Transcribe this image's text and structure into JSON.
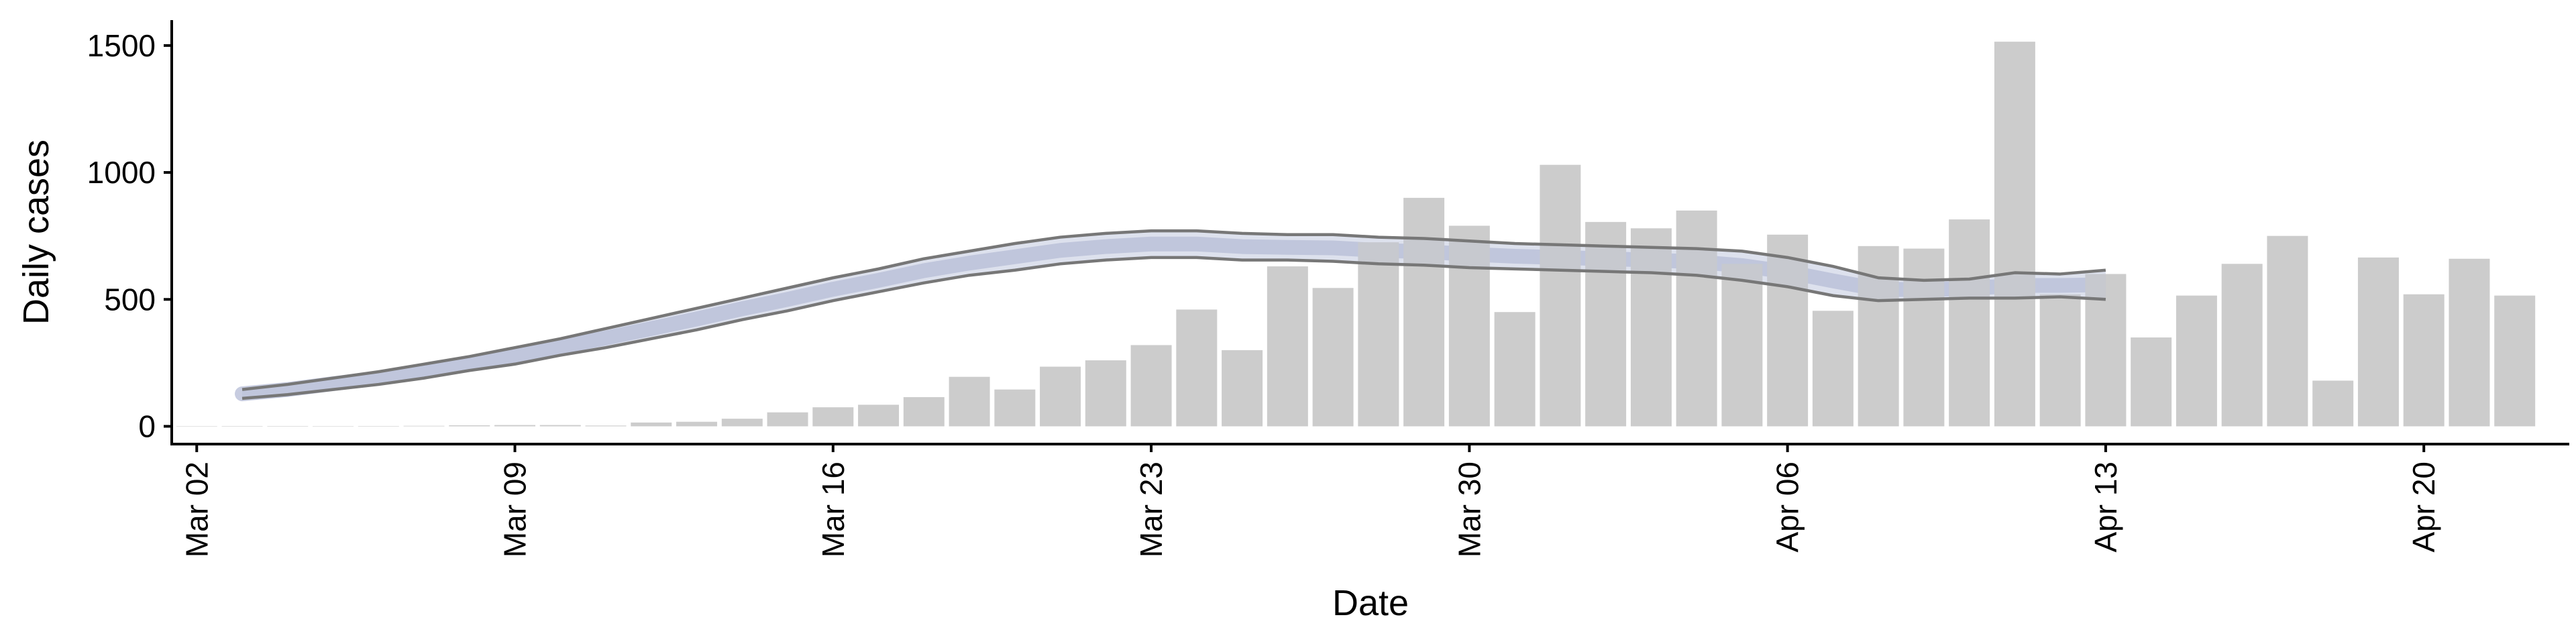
{
  "chart_data": {
    "type": "bar",
    "title": "",
    "xlabel": "Date",
    "ylabel": "Daily cases",
    "ylim": [
      -70,
      1600
    ],
    "yticks": [
      0,
      500,
      1000,
      1500
    ],
    "xlim": [
      -0.55,
      52.2
    ],
    "xticks": [
      {
        "pos": 0,
        "label": "Mar 02"
      },
      {
        "pos": 7,
        "label": "Mar 09"
      },
      {
        "pos": 14,
        "label": "Mar 16"
      },
      {
        "pos": 21,
        "label": "Mar 23"
      },
      {
        "pos": 28,
        "label": "Mar 30"
      },
      {
        "pos": 35,
        "label": "Apr 06"
      },
      {
        "pos": 42,
        "label": "Apr 13"
      },
      {
        "pos": 49,
        "label": "Apr 20"
      }
    ],
    "grid": false,
    "legend": "none",
    "colors": {
      "bars": "#cccccc",
      "band_lines": "#777777",
      "band_fill": "#b9bfd8",
      "band_fill_light": "#e6e9f3"
    },
    "series": [
      {
        "kind": "bar",
        "x": [
          0,
          1,
          2,
          3,
          4,
          5,
          6,
          7,
          8,
          9,
          10,
          11,
          12,
          13,
          14,
          15,
          16,
          17,
          18,
          19,
          20,
          21,
          22,
          23,
          24,
          25,
          26,
          27,
          28,
          29,
          30,
          31,
          32,
          33,
          34,
          35,
          36,
          37,
          38,
          39,
          40,
          41,
          42,
          43,
          44,
          45,
          46,
          47,
          48,
          49,
          50,
          51
        ],
        "values": [
          0,
          1,
          1,
          0,
          1,
          2,
          4,
          5,
          5,
          3,
          15,
          18,
          30,
          55,
          75,
          85,
          115,
          195,
          145,
          235,
          260,
          320,
          460,
          300,
          630,
          545,
          725,
          900,
          790,
          450,
          1030,
          805,
          780,
          850,
          640,
          755,
          455,
          710,
          700,
          815,
          1515,
          520,
          600,
          350,
          515,
          640,
          750,
          180,
          665,
          520,
          660,
          515
        ]
      },
      {
        "kind": "band",
        "x": [
          1,
          2,
          3,
          4,
          5,
          6,
          7,
          8,
          9,
          10,
          11,
          12,
          13,
          14,
          15,
          16,
          17,
          18,
          19,
          20,
          21,
          22,
          23,
          24,
          25,
          26,
          27,
          28,
          29,
          30,
          31,
          32,
          33,
          34,
          35,
          36,
          37,
          38,
          39,
          40,
          41,
          42
        ],
        "upper": [
          145,
          165,
          190,
          215,
          245,
          275,
          310,
          345,
          385,
          425,
          465,
          505,
          545,
          585,
          620,
          660,
          690,
          720,
          745,
          760,
          770,
          770,
          760,
          755,
          755,
          745,
          740,
          730,
          720,
          715,
          710,
          705,
          700,
          690,
          665,
          630,
          585,
          575,
          580,
          605,
          600,
          615
        ],
        "lower": [
          110,
          125,
          145,
          165,
          190,
          220,
          245,
          280,
          310,
          345,
          380,
          420,
          455,
          495,
          530,
          565,
          595,
          615,
          640,
          655,
          665,
          665,
          655,
          655,
          650,
          640,
          635,
          625,
          620,
          615,
          610,
          605,
          595,
          575,
          550,
          515,
          495,
          500,
          505,
          505,
          510,
          500
        ],
        "mid": [
          128,
          145,
          168,
          190,
          218,
          248,
          278,
          313,
          348,
          385,
          423,
          463,
          500,
          540,
          575,
          613,
          643,
          668,
          693,
          708,
          718,
          718,
          708,
          705,
          703,
          693,
          688,
          678,
          670,
          665,
          660,
          655,
          648,
          633,
          608,
          573,
          540,
          538,
          543,
          555,
          555,
          558
        ]
      }
    ]
  }
}
